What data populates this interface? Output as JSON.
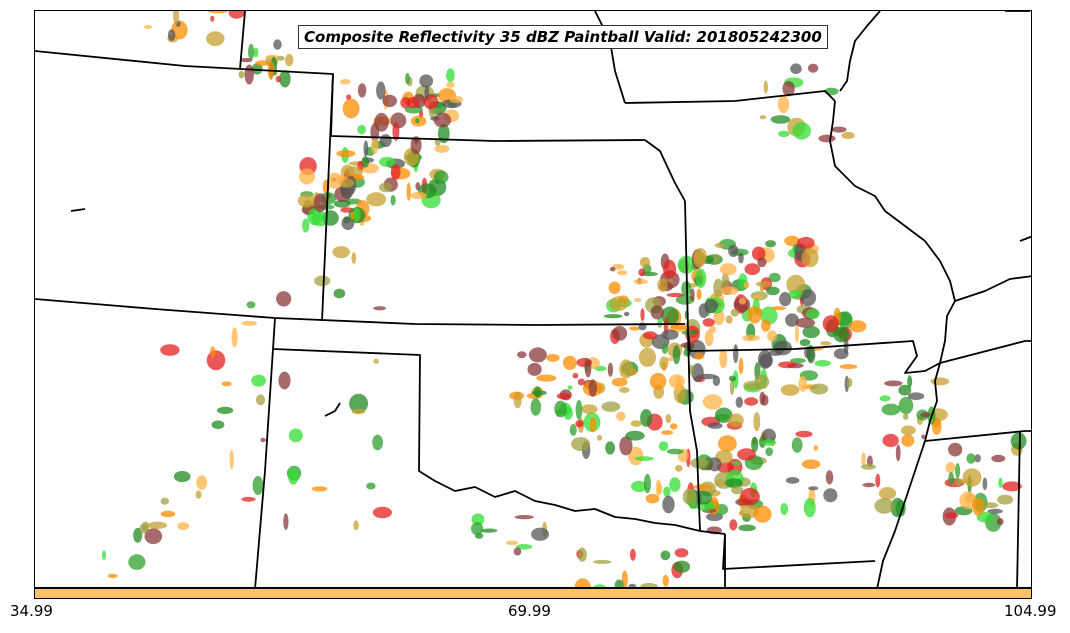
{
  "title": "Composite Reflectivity 35 dBZ Paintball Valid: 201805242300",
  "colorbar": {
    "color": "#ffc266",
    "ticks": [
      "34.99",
      "69.99",
      "104.99"
    ]
  },
  "member_colors": [
    "#e32020",
    "#ff8c00",
    "#ffb347",
    "#2ca02c",
    "#33dd33",
    "#8b3a3a",
    "#a0a040",
    "#555555",
    "#c8a030",
    "#228b22"
  ]
}
